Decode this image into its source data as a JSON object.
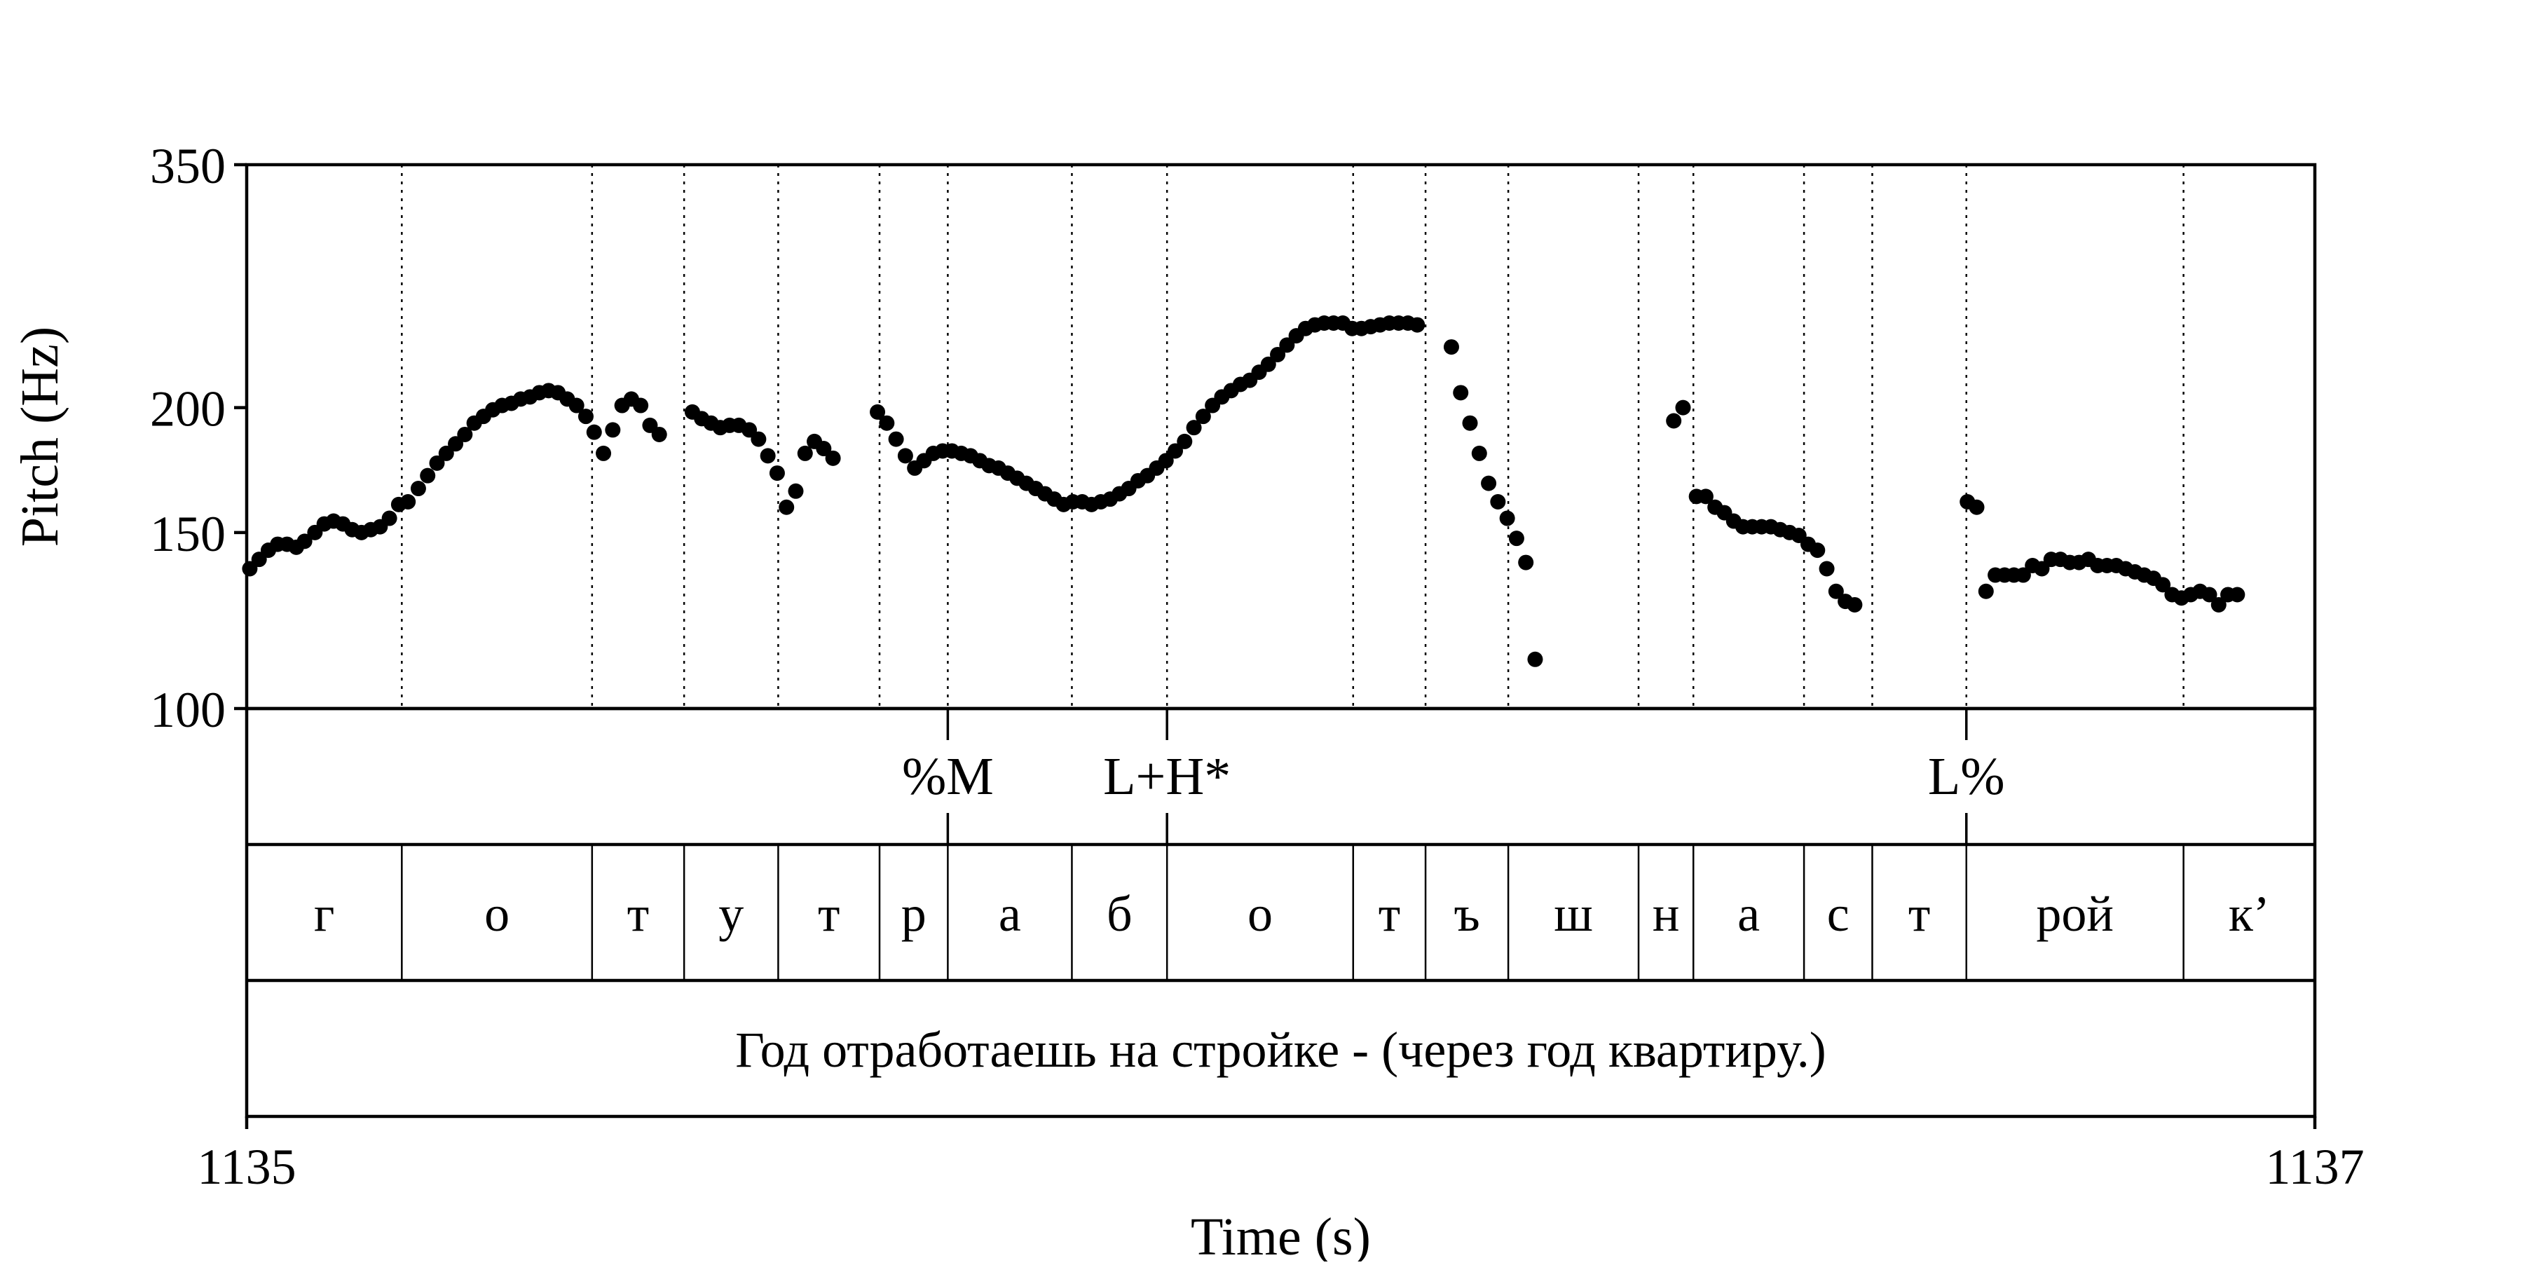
{
  "chart_data": {
    "type": "scatter",
    "xlabel": "Time (s)",
    "ylabel": "Pitch (Hz)",
    "xlim": [
      1135,
      1137
    ],
    "ylim": [
      100,
      350
    ],
    "y_scale": "log",
    "x_ticks": [
      "1135",
      "1137"
    ],
    "y_ticks": [
      100,
      150,
      200,
      350
    ],
    "grid": false,
    "pitch_points": [
      [
        1135.003,
        138
      ],
      [
        1135.012,
        141
      ],
      [
        1135.021,
        144
      ],
      [
        1135.03,
        146
      ],
      [
        1135.039,
        146
      ],
      [
        1135.048,
        145
      ],
      [
        1135.056,
        147
      ],
      [
        1135.066,
        150
      ],
      [
        1135.075,
        153
      ],
      [
        1135.084,
        154
      ],
      [
        1135.093,
        153
      ],
      [
        1135.102,
        151
      ],
      [
        1135.111,
        150
      ],
      [
        1135.12,
        151
      ],
      [
        1135.129,
        152
      ],
      [
        1135.138,
        155
      ],
      [
        1135.147,
        160
      ],
      [
        1135.156,
        161
      ],
      [
        1135.166,
        166
      ],
      [
        1135.175,
        171
      ],
      [
        1135.184,
        176
      ],
      [
        1135.193,
        180
      ],
      [
        1135.202,
        184
      ],
      [
        1135.211,
        188
      ],
      [
        1135.22,
        193
      ],
      [
        1135.229,
        196
      ],
      [
        1135.238,
        199
      ],
      [
        1135.247,
        201
      ],
      [
        1135.256,
        202
      ],
      [
        1135.265,
        204
      ],
      [
        1135.274,
        205
      ],
      [
        1135.283,
        207
      ],
      [
        1135.292,
        208
      ],
      [
        1135.301,
        207
      ],
      [
        1135.31,
        204
      ],
      [
        1135.319,
        201
      ],
      [
        1135.328,
        196
      ],
      [
        1135.336,
        189
      ],
      [
        1135.345,
        180
      ],
      [
        1135.354,
        190
      ],
      [
        1135.363,
        201
      ],
      [
        1135.372,
        204
      ],
      [
        1135.381,
        201
      ],
      [
        1135.39,
        192
      ],
      [
        1135.399,
        188
      ],
      [
        1135.431,
        198
      ],
      [
        1135.44,
        195
      ],
      [
        1135.449,
        193
      ],
      [
        1135.458,
        191
      ],
      [
        1135.467,
        192
      ],
      [
        1135.476,
        192
      ],
      [
        1135.486,
        190
      ],
      [
        1135.495,
        186
      ],
      [
        1135.504,
        179
      ],
      [
        1135.513,
        172
      ],
      [
        1135.522,
        159
      ],
      [
        1135.531,
        165
      ],
      [
        1135.54,
        180
      ],
      [
        1135.549,
        185
      ],
      [
        1135.558,
        182
      ],
      [
        1135.567,
        178
      ],
      [
        1135.61,
        198
      ],
      [
        1135.619,
        193
      ],
      [
        1135.628,
        186
      ],
      [
        1135.637,
        179
      ],
      [
        1135.646,
        174
      ],
      [
        1135.655,
        177
      ],
      [
        1135.664,
        180
      ],
      [
        1135.673,
        181
      ],
      [
        1135.682,
        181
      ],
      [
        1135.691,
        180
      ],
      [
        1135.7,
        179
      ],
      [
        1135.709,
        177
      ],
      [
        1135.718,
        175
      ],
      [
        1135.727,
        174
      ],
      [
        1135.736,
        172
      ],
      [
        1135.745,
        170
      ],
      [
        1135.754,
        168
      ],
      [
        1135.763,
        166
      ],
      [
        1135.772,
        164
      ],
      [
        1135.781,
        162
      ],
      [
        1135.79,
        160
      ],
      [
        1135.799,
        161
      ],
      [
        1135.808,
        161
      ],
      [
        1135.817,
        160
      ],
      [
        1135.826,
        161
      ],
      [
        1135.835,
        162
      ],
      [
        1135.844,
        164
      ],
      [
        1135.853,
        166
      ],
      [
        1135.862,
        169
      ],
      [
        1135.871,
        171
      ],
      [
        1135.88,
        174
      ],
      [
        1135.889,
        177
      ],
      [
        1135.898,
        181
      ],
      [
        1135.907,
        185
      ],
      [
        1135.916,
        191
      ],
      [
        1135.925,
        196
      ],
      [
        1135.934,
        201
      ],
      [
        1135.943,
        205
      ],
      [
        1135.952,
        208
      ],
      [
        1135.961,
        211
      ],
      [
        1135.97,
        213
      ],
      [
        1135.979,
        217
      ],
      [
        1135.988,
        221
      ],
      [
        1135.997,
        226
      ],
      [
        1136.006,
        231
      ],
      [
        1136.015,
        236
      ],
      [
        1136.024,
        240
      ],
      [
        1136.033,
        242
      ],
      [
        1136.042,
        243
      ],
      [
        1136.051,
        243
      ],
      [
        1136.06,
        243
      ],
      [
        1136.069,
        240
      ],
      [
        1136.078,
        240
      ],
      [
        1136.087,
        241
      ],
      [
        1136.096,
        242
      ],
      [
        1136.105,
        243
      ],
      [
        1136.114,
        243
      ],
      [
        1136.123,
        243
      ],
      [
        1136.132,
        242
      ],
      [
        1136.165,
        230
      ],
      [
        1136.174,
        207
      ],
      [
        1136.183,
        193
      ],
      [
        1136.192,
        180
      ],
      [
        1136.201,
        168
      ],
      [
        1136.21,
        161
      ],
      [
        1136.219,
        155
      ],
      [
        1136.228,
        148
      ],
      [
        1136.237,
        140
      ],
      [
        1136.246,
        112
      ],
      [
        1136.38,
        194
      ],
      [
        1136.389,
        200
      ],
      [
        1136.402,
        163
      ],
      [
        1136.411,
        163
      ],
      [
        1136.42,
        159
      ],
      [
        1136.429,
        157
      ],
      [
        1136.438,
        154
      ],
      [
        1136.447,
        152
      ],
      [
        1136.456,
        152
      ],
      [
        1136.465,
        152
      ],
      [
        1136.474,
        152
      ],
      [
        1136.483,
        151
      ],
      [
        1136.492,
        150
      ],
      [
        1136.501,
        149
      ],
      [
        1136.51,
        146
      ],
      [
        1136.519,
        144
      ],
      [
        1136.528,
        138
      ],
      [
        1136.537,
        131
      ],
      [
        1136.546,
        128
      ],
      [
        1136.555,
        127
      ],
      [
        1136.664,
        161
      ],
      [
        1136.673,
        159
      ],
      [
        1136.682,
        131
      ],
      [
        1136.691,
        136
      ],
      [
        1136.7,
        136
      ],
      [
        1136.709,
        136
      ],
      [
        1136.718,
        136
      ],
      [
        1136.727,
        139
      ],
      [
        1136.736,
        138
      ],
      [
        1136.745,
        141
      ],
      [
        1136.754,
        141
      ],
      [
        1136.763,
        140
      ],
      [
        1136.772,
        140
      ],
      [
        1136.781,
        141
      ],
      [
        1136.79,
        139
      ],
      [
        1136.799,
        139
      ],
      [
        1136.808,
        139
      ],
      [
        1136.817,
        138
      ],
      [
        1136.826,
        137
      ],
      [
        1136.835,
        136
      ],
      [
        1136.844,
        135
      ],
      [
        1136.853,
        133
      ],
      [
        1136.862,
        130
      ],
      [
        1136.871,
        129
      ],
      [
        1136.88,
        130
      ],
      [
        1136.889,
        131
      ],
      [
        1136.898,
        130
      ],
      [
        1136.907,
        127
      ],
      [
        1136.916,
        130
      ],
      [
        1136.925,
        130
      ]
    ],
    "boundaries": [
      1135.15,
      1135.334,
      1135.423,
      1135.514,
      1135.612,
      1135.678,
      1135.798,
      1135.89,
      1136.07,
      1136.14,
      1136.22,
      1136.346,
      1136.399,
      1136.506,
      1136.572,
      1136.663,
      1136.873
    ],
    "tones": [
      {
        "t": 1135.678,
        "label": "%M"
      },
      {
        "t": 1135.89,
        "label": "L+H*"
      },
      {
        "t": 1136.663,
        "label": "L%"
      }
    ],
    "segments": [
      "г",
      "о",
      "т",
      "у",
      "т",
      "р",
      "а",
      "б",
      "о",
      "т",
      "ъ",
      "ш",
      "н",
      "а",
      "с",
      "т",
      "рой",
      "к’"
    ],
    "sentence": "Год отработаешь на стройке - (через год квартиру.)"
  }
}
